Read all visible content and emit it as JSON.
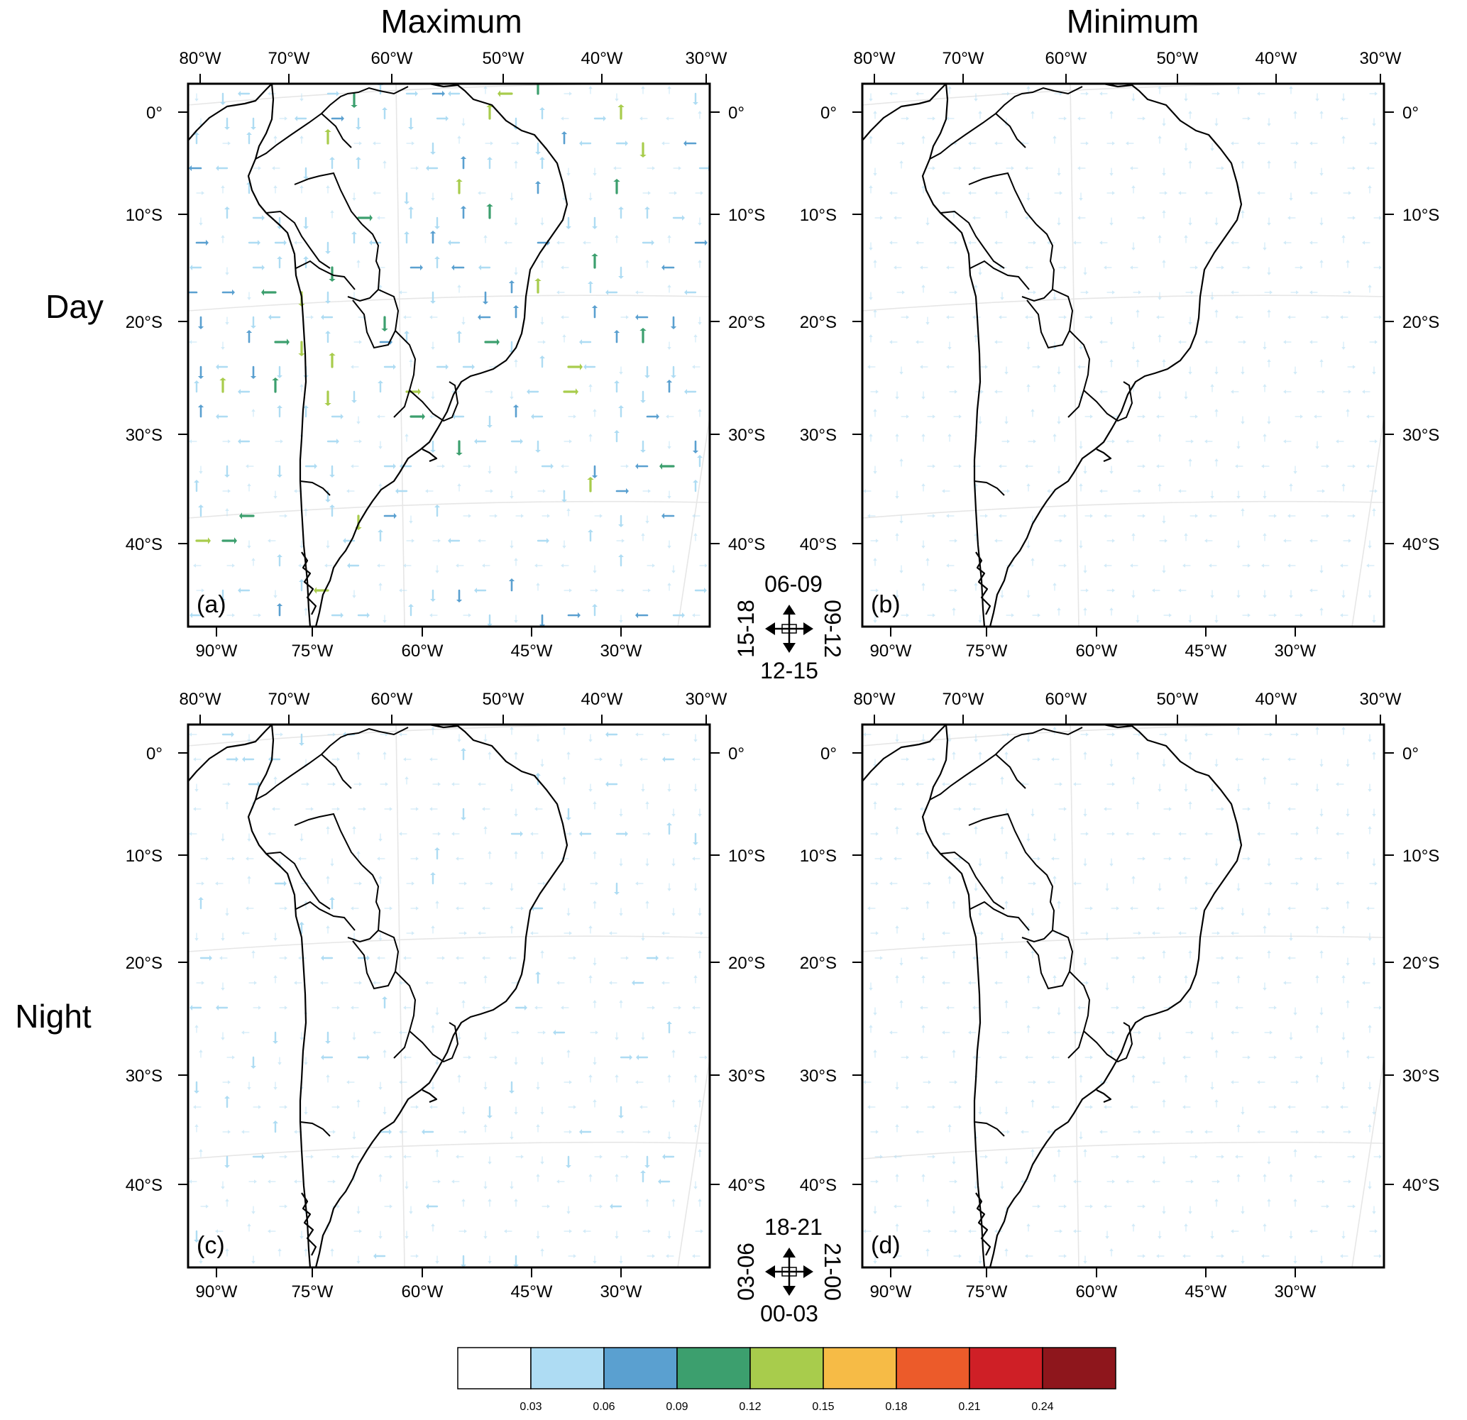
{
  "column_titles": [
    "Maximum",
    "Minimum"
  ],
  "row_labels": [
    "Day",
    "Night"
  ],
  "panels": [
    {
      "id": "a",
      "label": "(a)",
      "column": "Maximum",
      "row": "Day",
      "intensity": 1.0
    },
    {
      "id": "b",
      "label": "(b)",
      "column": "Minimum",
      "row": "Day",
      "intensity": 0.45
    },
    {
      "id": "c",
      "label": "(c)",
      "column": "Maximum",
      "row": "Night",
      "intensity": 0.6
    },
    {
      "id": "d",
      "label": "(d)",
      "column": "Minimum",
      "row": "Night",
      "intensity": 0.15
    }
  ],
  "axes": {
    "top_lon_labels": [
      "80°W",
      "70°W",
      "60°W",
      "50°W",
      "40°W",
      "30°W"
    ],
    "bottom_lon_labels": [
      "90°W",
      "75°W",
      "60°W",
      "45°W",
      "30°W"
    ],
    "lat_labels": [
      "0°",
      "10°S",
      "20°S",
      "30°S",
      "40°S"
    ]
  },
  "direction_keys": [
    {
      "row": "Day",
      "up": "06-09",
      "right": "09-12",
      "down": "12-15",
      "left": "15-18"
    },
    {
      "row": "Night",
      "up": "18-21",
      "right": "21-00",
      "down": "00-03",
      "left": "03-06"
    }
  ],
  "legend": {
    "colors": [
      "#ffffff",
      "#aedcf3",
      "#5aa0d0",
      "#3c9f6e",
      "#a8cc4c",
      "#f6bb46",
      "#ec5b2a",
      "#cf1f26",
      "#8e161c"
    ],
    "tick_labels": [
      "0.03",
      "0.06",
      "0.09",
      "0.12",
      "0.15",
      "0.18",
      "0.21",
      "0.24"
    ]
  }
}
